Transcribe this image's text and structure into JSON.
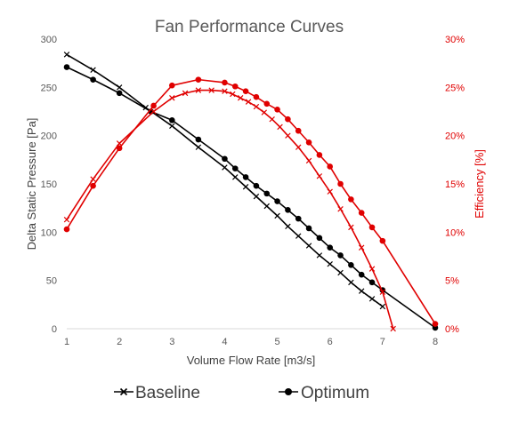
{
  "chart_data": {
    "type": "line",
    "title": "Fan Performance Curves",
    "xlabel": "Volume Flow Rate [m3/s]",
    "ylabel": "Delta Static Pressure [Pa]",
    "y2label": "Efficiency [%]",
    "xlim": [
      1,
      8
    ],
    "ylim": [
      0,
      300
    ],
    "y2lim": [
      0,
      0.3
    ],
    "xticks": [
      "1",
      "2",
      "3",
      "4",
      "5",
      "6",
      "7",
      "8"
    ],
    "yticks": [
      "0",
      "50",
      "100",
      "150",
      "200",
      "250",
      "300"
    ],
    "y2ticks": [
      "0%",
      "5%",
      "10%",
      "15%",
      "20%",
      "25%",
      "30%"
    ],
    "grid": false,
    "legend": {
      "position": "bottom",
      "entries": [
        "Baseline",
        "Optimum"
      ]
    },
    "series": [
      {
        "name": "Baseline",
        "axis": "pressure",
        "color": "#000000",
        "marker": "x",
        "x": [
          1,
          1.5,
          2,
          2.5,
          3,
          3.5,
          4,
          4.2,
          4.4,
          4.6,
          4.8,
          5,
          5.2,
          5.4,
          5.6,
          5.8,
          6,
          6.2,
          6.4,
          6.6,
          6.8,
          7
        ],
        "y": [
          284,
          268,
          250,
          229,
          210,
          188,
          167,
          157,
          147,
          137,
          127,
          117,
          106,
          96,
          86,
          76,
          67,
          58,
          48,
          39,
          31,
          23
        ]
      },
      {
        "name": "Optimum",
        "axis": "pressure",
        "color": "#000000",
        "marker": "circle",
        "x": [
          1,
          1.5,
          2,
          2.6,
          3,
          3.5,
          4,
          4.2,
          4.4,
          4.6,
          4.8,
          5,
          5.2,
          5.4,
          5.6,
          5.8,
          6,
          6.2,
          6.4,
          6.6,
          6.8,
          7,
          8
        ],
        "y": [
          271,
          258,
          244,
          225,
          216,
          196,
          176,
          166,
          157,
          148,
          140,
          132,
          123,
          114,
          104,
          94,
          84,
          76,
          66,
          56,
          48,
          40,
          1
        ]
      },
      {
        "name": "Baseline",
        "axis": "efficiency",
        "color": "#e00000",
        "marker": "x",
        "x": [
          1,
          1.5,
          2,
          2.65,
          3,
          3.25,
          3.5,
          3.75,
          4,
          4.15,
          4.3,
          4.45,
          4.6,
          4.75,
          4.9,
          5.05,
          5.2,
          5.4,
          5.6,
          5.8,
          6,
          6.2,
          6.4,
          6.6,
          6.8,
          7,
          7.2
        ],
        "y": [
          0.113,
          0.155,
          0.192,
          0.225,
          0.239,
          0.244,
          0.247,
          0.247,
          0.246,
          0.243,
          0.239,
          0.235,
          0.23,
          0.224,
          0.217,
          0.209,
          0.2,
          0.188,
          0.174,
          0.158,
          0.142,
          0.124,
          0.105,
          0.084,
          0.062,
          0.038,
          0.0
        ]
      },
      {
        "name": "Optimum",
        "axis": "efficiency",
        "color": "#e00000",
        "marker": "circle",
        "x": [
          1,
          1.5,
          2,
          2.65,
          3,
          3.5,
          4,
          4.2,
          4.4,
          4.6,
          4.8,
          5,
          5.2,
          5.4,
          5.6,
          5.8,
          6,
          6.2,
          6.4,
          6.6,
          6.8,
          7,
          8
        ],
        "y": [
          0.103,
          0.148,
          0.187,
          0.231,
          0.252,
          0.258,
          0.255,
          0.251,
          0.246,
          0.24,
          0.233,
          0.227,
          0.217,
          0.205,
          0.193,
          0.18,
          0.168,
          0.15,
          0.134,
          0.12,
          0.105,
          0.091,
          0.005
        ]
      }
    ]
  }
}
